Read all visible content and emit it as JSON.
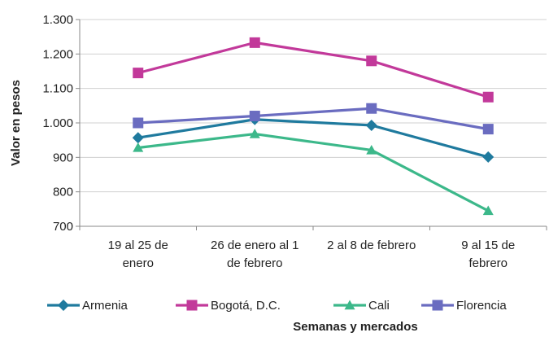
{
  "chart_data": {
    "type": "line",
    "xlabel": "Semanas y mercados",
    "ylabel": "Valor en pesos",
    "ylim": [
      700,
      1300
    ],
    "yticks": [
      700,
      800,
      900,
      1000,
      1100,
      1200,
      1300
    ],
    "ytick_labels": [
      "700",
      "800",
      "900",
      "1.000",
      "1.100",
      "1.200",
      "1.300"
    ],
    "grid": true,
    "legend_position": "bottom",
    "categories": [
      [
        "19 al 25 de",
        "enero"
      ],
      [
        "26 de enero al 1",
        "de febrero"
      ],
      [
        "2 al 8 de febrero"
      ],
      [
        "9 al 15 de",
        "febrero"
      ]
    ],
    "series": [
      {
        "name": "Armenia",
        "color": "#1f7a9e",
        "marker": "diamond",
        "values": [
          957,
          1010,
          993,
          901
        ]
      },
      {
        "name": "Bogotá, D.C.",
        "color": "#c2399a",
        "marker": "square",
        "values": [
          1145,
          1233,
          1180,
          1075
        ]
      },
      {
        "name": "Cali",
        "color": "#3cb88a",
        "marker": "triangle",
        "values": [
          928,
          968,
          921,
          745
        ]
      },
      {
        "name": "Florencia",
        "color": "#6a6cc0",
        "marker": "square",
        "values": [
          1000,
          1020,
          1042,
          982
        ]
      }
    ]
  }
}
